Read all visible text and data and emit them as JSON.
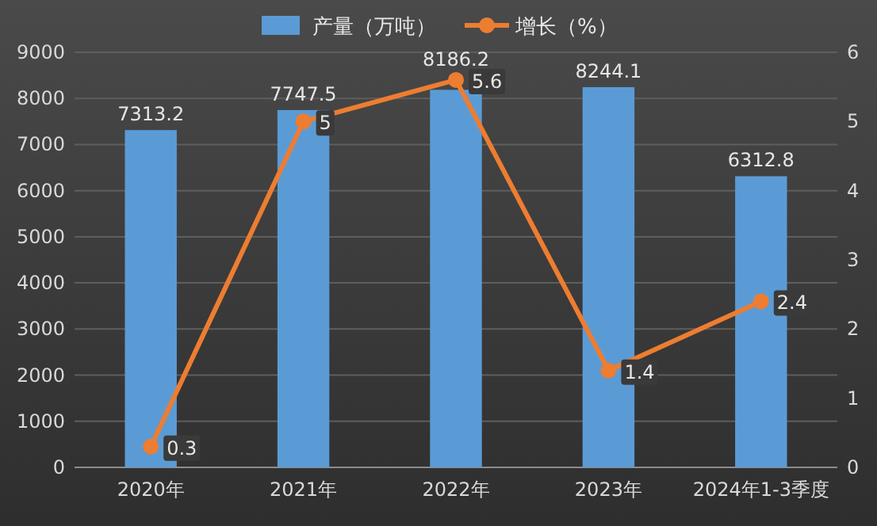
{
  "chart_data": {
    "type": "bar",
    "categories": [
      "2020年",
      "2021年",
      "2022年",
      "2023年",
      "2024年1-3季度"
    ],
    "series": [
      {
        "name": "产量（万吨）",
        "color": "#5b9bd5",
        "values": [
          7313.2,
          7747.5,
          8186.2,
          8244.1,
          6312.8
        ]
      },
      {
        "name": "增长（%）",
        "type": "line",
        "axis": "y2",
        "color": "#ed7d31",
        "marker": "circle",
        "values": [
          0.3,
          5,
          5.6,
          1.4,
          2.4
        ]
      }
    ],
    "ylim": [
      0,
      9000
    ],
    "yticks": [
      0,
      1000,
      2000,
      3000,
      4000,
      5000,
      6000,
      7000,
      8000,
      9000
    ],
    "y2lim": [
      0,
      6
    ],
    "y2ticks": [
      0,
      1,
      2,
      3,
      4,
      5,
      6
    ],
    "grid": "y",
    "legend": "top",
    "data_labels": true
  }
}
